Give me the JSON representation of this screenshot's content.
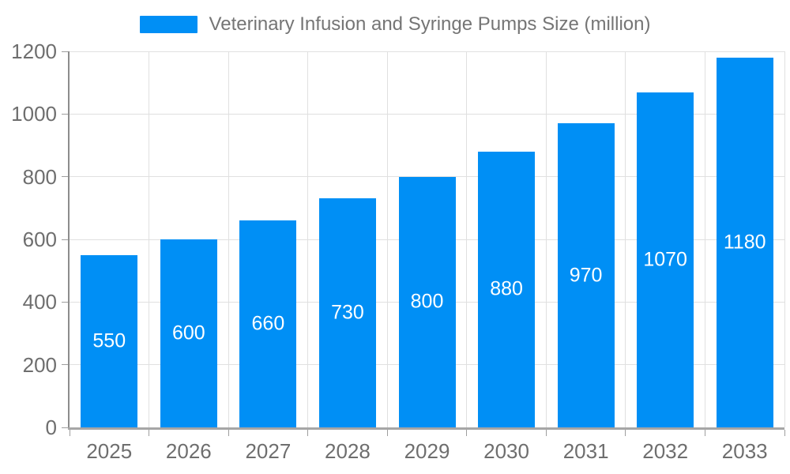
{
  "chart_data": {
    "type": "bar",
    "title": "Veterinary Infusion and Syringe Pumps Size (million)",
    "categories": [
      "2025",
      "2026",
      "2027",
      "2028",
      "2029",
      "2030",
      "2031",
      "2032",
      "2033"
    ],
    "values": [
      550,
      600,
      660,
      730,
      800,
      880,
      970,
      1070,
      1180
    ],
    "xlabel": "",
    "ylabel": "",
    "ylim": [
      0,
      1200
    ],
    "yticks": [
      0,
      200,
      400,
      600,
      800,
      1000,
      1200
    ],
    "grid": "both",
    "legend_position": "top",
    "value_labels": "inside-center"
  },
  "colors": {
    "bar": "#008FF5",
    "grid": "#e0e0e0",
    "axis": "#9e9e9e",
    "tick_text": "#6e6e6e",
    "legend_text": "#757575",
    "bar_label_text": "#ffffff",
    "background": "#ffffff"
  }
}
